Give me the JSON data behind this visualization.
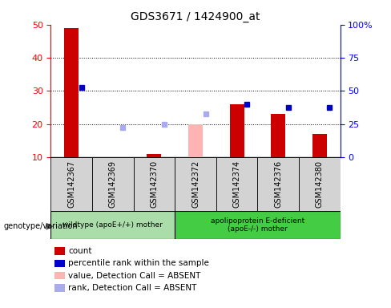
{
  "title": "GDS3671 / 1424900_at",
  "samples": [
    "GSM142367",
    "GSM142369",
    "GSM142370",
    "GSM142372",
    "GSM142374",
    "GSM142376",
    "GSM142380"
  ],
  "count_values": [
    49,
    10,
    11,
    null,
    26,
    23,
    17
  ],
  "count_absent": [
    null,
    null,
    null,
    20,
    null,
    null,
    null
  ],
  "rank_values": [
    31,
    null,
    null,
    null,
    26,
    25,
    25
  ],
  "rank_absent": [
    null,
    19,
    20,
    23,
    null,
    null,
    null
  ],
  "ylim": [
    10,
    50
  ],
  "yticks": [
    10,
    20,
    30,
    40,
    50
  ],
  "y2ticks": [
    0,
    25,
    50,
    75,
    100
  ],
  "y2labels": [
    "0",
    "25",
    "50",
    "75",
    "100%"
  ],
  "group1_label": "wildtype (apoE+/+) mother",
  "group2_label": "apolipoprotein E-deficient\n(apoE-/-) mother",
  "group1_count": 3,
  "group2_count": 4,
  "bar_color": "#cc0000",
  "bar_absent_color": "#ffb3b3",
  "rank_color": "#0000cc",
  "rank_absent_color": "#aaaaee",
  "group1_bg": "#aaddaa",
  "group2_bg": "#44cc44",
  "legend_items": [
    {
      "color": "#cc0000",
      "label": "count"
    },
    {
      "color": "#0000cc",
      "label": "percentile rank within the sample"
    },
    {
      "color": "#ffb3b3",
      "label": "value, Detection Call = ABSENT"
    },
    {
      "color": "#aaaaee",
      "label": "rank, Detection Call = ABSENT"
    }
  ],
  "bar_width": 0.35,
  "fig_width": 4.88,
  "fig_height": 3.84,
  "dpi": 100
}
